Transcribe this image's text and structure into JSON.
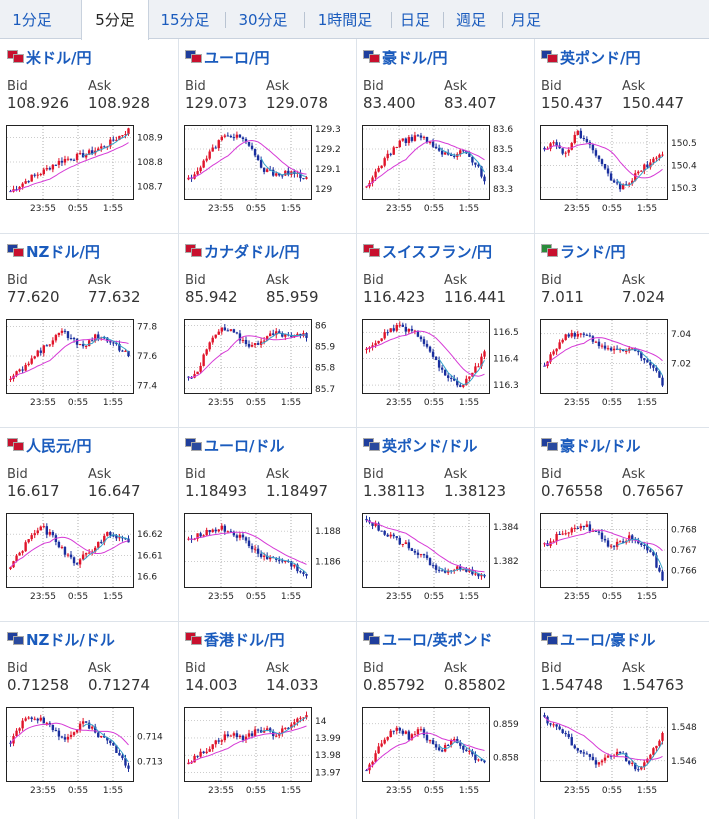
{
  "tabs": [
    {
      "label": "1分足",
      "active": false
    },
    {
      "label": "5分足",
      "active": true
    },
    {
      "label": "15分足",
      "active": false
    },
    {
      "label": "30分足",
      "active": false
    },
    {
      "label": "1時間足",
      "active": false
    },
    {
      "label": "日足",
      "active": false
    },
    {
      "label": "週足",
      "active": false
    },
    {
      "label": "月足",
      "active": false
    }
  ],
  "bid_label": "Bid",
  "ask_label": "Ask",
  "x_ticks": [
    "23:55",
    "0:55",
    "1:55"
  ],
  "colors": {
    "up": "#e0142a",
    "down": "#1a2f9e",
    "ma": "#d63ad6",
    "ma2": "#38a3c9",
    "title": "#1a5bbd"
  },
  "cards": [
    {
      "title": "米ドル/円",
      "flags": [
        "#c8102e",
        "#c8102e"
      ],
      "bid": "108.926",
      "ask": "108.928",
      "yticks": [
        "108.9",
        "108.8",
        "108.7"
      ],
      "ylim": [
        108.65,
        108.95
      ],
      "prices": [
        108.68,
        108.71,
        108.74,
        108.76,
        108.79,
        108.81,
        108.82,
        108.83,
        108.85,
        108.87,
        108.9,
        108.93
      ]
    },
    {
      "title": "ユーロ/円",
      "flags": [
        "#1f3e9c",
        "#c8102e"
      ],
      "bid": "129.073",
      "ask": "129.078",
      "yticks": [
        "129.3",
        "129.2",
        "129.1",
        "129"
      ],
      "ylim": [
        128.95,
        129.32
      ],
      "prices": [
        129.05,
        129.1,
        129.18,
        129.25,
        129.27,
        129.26,
        129.18,
        129.09,
        129.08,
        129.08,
        129.07,
        129.06
      ]
    },
    {
      "title": "豪ドル/円",
      "flags": [
        "#1f3e9c",
        "#c8102e"
      ],
      "bid": "83.400",
      "ask": "83.407",
      "yticks": [
        "83.6",
        "83.5",
        "83.4",
        "83.3"
      ],
      "ylim": [
        83.25,
        83.62
      ],
      "prices": [
        83.3,
        83.4,
        83.47,
        83.53,
        83.55,
        83.57,
        83.52,
        83.48,
        83.46,
        83.49,
        83.44,
        83.35
      ]
    },
    {
      "title": "英ポンド/円",
      "flags": [
        "#1f3e9c",
        "#c8102e"
      ],
      "bid": "150.437",
      "ask": "150.447",
      "yticks": [
        "150.5",
        "150.4",
        "150.3"
      ],
      "ylim": [
        150.25,
        150.58
      ],
      "prices": [
        150.48,
        150.5,
        150.45,
        150.55,
        150.5,
        150.42,
        150.35,
        150.3,
        150.33,
        150.38,
        150.42,
        150.44
      ]
    },
    {
      "title": "NZドル/円",
      "flags": [
        "#1f3e9c",
        "#c8102e"
      ],
      "bid": "77.620",
      "ask": "77.632",
      "yticks": [
        "77.8",
        "77.6",
        "77.4"
      ],
      "ylim": [
        77.35,
        77.85
      ],
      "prices": [
        77.45,
        77.5,
        77.58,
        77.65,
        77.72,
        77.76,
        77.7,
        77.68,
        77.74,
        77.72,
        77.66,
        77.6
      ]
    },
    {
      "title": "カナダドル/円",
      "flags": [
        "#c8102e",
        "#c8102e"
      ],
      "bid": "85.942",
      "ask": "85.959",
      "yticks": [
        "86",
        "85.9",
        "85.8",
        "85.7"
      ],
      "ylim": [
        85.68,
        86.03
      ],
      "prices": [
        85.75,
        85.8,
        85.92,
        85.98,
        85.97,
        85.93,
        85.9,
        85.94,
        85.96,
        85.95,
        85.96,
        85.95
      ]
    },
    {
      "title": "スイスフラン/円",
      "flags": [
        "#c8102e",
        "#c8102e"
      ],
      "bid": "116.423",
      "ask": "116.441",
      "yticks": [
        "116.5",
        "116.4",
        "116.3"
      ],
      "ylim": [
        116.27,
        116.55
      ],
      "prices": [
        116.43,
        116.47,
        116.5,
        116.52,
        116.51,
        116.48,
        116.42,
        116.35,
        116.31,
        116.3,
        116.35,
        116.42
      ]
    },
    {
      "title": "ランド/円",
      "flags": [
        "#2a8c3a",
        "#c8102e"
      ],
      "bid": "7.011",
      "ask": "7.024",
      "yticks": [
        "7.04",
        "7.02"
      ],
      "ylim": [
        7.0,
        7.05
      ],
      "prices": [
        7.02,
        7.03,
        7.04,
        7.038,
        7.04,
        7.033,
        7.03,
        7.028,
        7.03,
        7.025,
        7.02,
        7.005
      ]
    },
    {
      "title": "人民元/円",
      "flags": [
        "#c8102e",
        "#c8102e"
      ],
      "bid": "16.617",
      "ask": "16.647",
      "yticks": [
        "16.62",
        "16.61",
        "16.6"
      ],
      "ylim": [
        16.595,
        16.63
      ],
      "prices": [
        16.605,
        16.612,
        16.62,
        16.623,
        16.618,
        16.612,
        16.606,
        16.61,
        16.615,
        16.62,
        16.618,
        16.617
      ]
    },
    {
      "title": "ユーロ/ドル",
      "flags": [
        "#1f3e9c",
        "#2a4a9e"
      ],
      "bid": "1.18493",
      "ask": "1.18497",
      "yticks": [
        "1.188",
        "1.186"
      ],
      "ylim": [
        1.1843,
        1.1892
      ],
      "prices": [
        1.1875,
        1.1878,
        1.188,
        1.1882,
        1.1879,
        1.1875,
        1.1868,
        1.1863,
        1.1861,
        1.186,
        1.1856,
        1.1849
      ]
    },
    {
      "title": "英ポンド/ドル",
      "flags": [
        "#1f3e9c",
        "#2a4a9e"
      ],
      "bid": "1.38113",
      "ask": "1.38123",
      "yticks": [
        "1.384",
        "1.382"
      ],
      "ylim": [
        1.3805,
        1.3848
      ],
      "prices": [
        1.3843,
        1.384,
        1.3835,
        1.3832,
        1.3828,
        1.3824,
        1.3818,
        1.3814,
        1.3815,
        1.3816,
        1.3813,
        1.3811
      ]
    },
    {
      "title": "豪ドル/ドル",
      "flags": [
        "#1f3e9c",
        "#2a4a9e"
      ],
      "bid": "0.76558",
      "ask": "0.76567",
      "yticks": [
        "0.768",
        "0.767",
        "0.766"
      ],
      "ylim": [
        0.7652,
        0.7688
      ],
      "prices": [
        0.7672,
        0.7676,
        0.7679,
        0.7682,
        0.7681,
        0.7679,
        0.7672,
        0.7674,
        0.7676,
        0.7674,
        0.7668,
        0.7656
      ]
    },
    {
      "title": "NZドル/ドル",
      "flags": [
        "#1f3e9c",
        "#2a4a9e"
      ],
      "bid": "0.71258",
      "ask": "0.71274",
      "yticks": [
        "0.714",
        "0.713"
      ],
      "ylim": [
        0.7122,
        0.7152
      ],
      "prices": [
        0.7138,
        0.7145,
        0.7148,
        0.7147,
        0.7142,
        0.7139,
        0.7143,
        0.7146,
        0.7141,
        0.7138,
        0.7134,
        0.7126
      ]
    },
    {
      "title": "香港ドル/円",
      "flags": [
        "#c8102e",
        "#c8102e"
      ],
      "bid": "14.003",
      "ask": "14.033",
      "yticks": [
        "14",
        "13.99",
        "13.98",
        "13.97"
      ],
      "ylim": [
        13.965,
        14.008
      ],
      "prices": [
        13.976,
        13.98,
        13.985,
        13.99,
        13.992,
        13.99,
        13.993,
        13.995,
        13.992,
        13.996,
        14.0,
        14.003
      ]
    },
    {
      "title": "ユーロ/英ポンド",
      "flags": [
        "#1f3e9c",
        "#1f3e9c"
      ],
      "bid": "0.85792",
      "ask": "0.85802",
      "yticks": [
        "0.859",
        "0.858"
      ],
      "ylim": [
        0.8573,
        0.8595
      ],
      "prices": [
        0.8576,
        0.8582,
        0.8587,
        0.8589,
        0.8586,
        0.8588,
        0.8584,
        0.8582,
        0.8585,
        0.8583,
        0.858,
        0.8579
      ]
    },
    {
      "title": "ユーロ/豪ドル",
      "flags": [
        "#1f3e9c",
        "#1f3e9c"
      ],
      "bid": "1.54748",
      "ask": "1.54763",
      "yticks": [
        "1.548",
        "1.546"
      ],
      "ylim": [
        1.5448,
        1.5492
      ],
      "prices": [
        1.5485,
        1.548,
        1.5474,
        1.5468,
        1.5463,
        1.5458,
        1.5462,
        1.5466,
        1.5458,
        1.5455,
        1.5466,
        1.5475
      ]
    }
  ]
}
